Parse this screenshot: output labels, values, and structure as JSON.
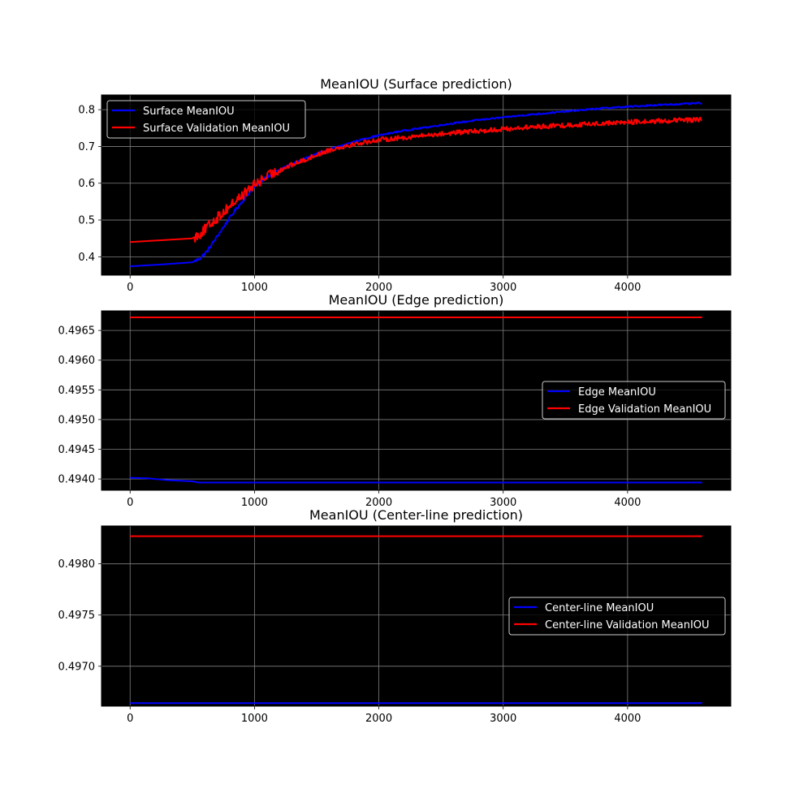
{
  "chart_data": [
    {
      "type": "line",
      "title": "MeanIOU (Surface prediction)",
      "xlabel": "",
      "ylabel": "",
      "xlim": [
        -230,
        4830
      ],
      "ylim": [
        0.35,
        0.84
      ],
      "xticks": [
        0,
        1000,
        2000,
        3000,
        4000
      ],
      "xtick_labels": [
        "0",
        "1000",
        "2000",
        "3000",
        "4000"
      ],
      "yticks": [
        0.4,
        0.5,
        0.6,
        0.7,
        0.8
      ],
      "ytick_labels": [
        "0.4",
        "0.5",
        "0.6",
        "0.7",
        "0.8"
      ],
      "grid": true,
      "background": "#000000",
      "legend": {
        "placement": "upper-left"
      },
      "series": [
        {
          "name": "Surface MeanIOU",
          "color": "#0000ff",
          "points": [
            [
              0,
              0.374
            ],
            [
              250,
              0.379
            ],
            [
              500,
              0.385
            ],
            [
              560,
              0.395
            ],
            [
              620,
              0.415
            ],
            [
              680,
              0.445
            ],
            [
              740,
              0.475
            ],
            [
              800,
              0.505
            ],
            [
              860,
              0.533
            ],
            [
              920,
              0.558
            ],
            [
              980,
              0.583
            ],
            [
              1040,
              0.603
            ],
            [
              1100,
              0.618
            ],
            [
              1200,
              0.637
            ],
            [
              1300,
              0.652
            ],
            [
              1400,
              0.667
            ],
            [
              1500,
              0.68
            ],
            [
              1600,
              0.692
            ],
            [
              1700,
              0.702
            ],
            [
              1800,
              0.713
            ],
            [
              1900,
              0.722
            ],
            [
              2000,
              0.73
            ],
            [
              2200,
              0.743
            ],
            [
              2400,
              0.753
            ],
            [
              2600,
              0.763
            ],
            [
              2800,
              0.772
            ],
            [
              3000,
              0.779
            ],
            [
              3200,
              0.786
            ],
            [
              3400,
              0.792
            ],
            [
              3600,
              0.798
            ],
            [
              3800,
              0.804
            ],
            [
              4000,
              0.808
            ],
            [
              4200,
              0.812
            ],
            [
              4400,
              0.815
            ],
            [
              4600,
              0.818
            ]
          ]
        },
        {
          "name": "Surface Validation MeanIOU",
          "color": "#ff0000",
          "points": [
            [
              0,
              0.44
            ],
            [
              250,
              0.445
            ],
            [
              500,
              0.45
            ],
            [
              560,
              0.462
            ],
            [
              620,
              0.48
            ],
            [
              680,
              0.5
            ],
            [
              740,
              0.518
            ],
            [
              800,
              0.538
            ],
            [
              860,
              0.555
            ],
            [
              920,
              0.572
            ],
            [
              980,
              0.59
            ],
            [
              1040,
              0.605
            ],
            [
              1100,
              0.618
            ],
            [
              1200,
              0.635
            ],
            [
              1300,
              0.65
            ],
            [
              1400,
              0.663
            ],
            [
              1500,
              0.677
            ],
            [
              1600,
              0.69
            ],
            [
              1700,
              0.699
            ],
            [
              1800,
              0.706
            ],
            [
              1900,
              0.712
            ],
            [
              2000,
              0.718
            ],
            [
              2200,
              0.724
            ],
            [
              2400,
              0.731
            ],
            [
              2600,
              0.737
            ],
            [
              2800,
              0.742
            ],
            [
              3000,
              0.747
            ],
            [
              3200,
              0.752
            ],
            [
              3400,
              0.756
            ],
            [
              3600,
              0.759
            ],
            [
              3800,
              0.763
            ],
            [
              4000,
              0.766
            ],
            [
              4200,
              0.768
            ],
            [
              4400,
              0.771
            ],
            [
              4600,
              0.773
            ]
          ]
        }
      ]
    },
    {
      "type": "line",
      "title": "MeanIOU (Edge prediction)",
      "xlabel": "",
      "ylabel": "",
      "xlim": [
        -230,
        4830
      ],
      "ylim": [
        0.49381,
        0.49683
      ],
      "xticks": [
        0,
        1000,
        2000,
        3000,
        4000
      ],
      "xtick_labels": [
        "0",
        "1000",
        "2000",
        "3000",
        "4000"
      ],
      "yticks": [
        0.494,
        0.4945,
        0.495,
        0.4955,
        0.496,
        0.4965
      ],
      "ytick_labels": [
        "0.4940",
        "0.4945",
        "0.4950",
        "0.4955",
        "0.4960",
        "0.4965"
      ],
      "grid": true,
      "background": "#000000",
      "legend": {
        "placement": "center-right"
      },
      "series": [
        {
          "name": "Edge MeanIOU",
          "color": "#0000ff",
          "points": [
            [
              0,
              0.49402
            ],
            [
              150,
              0.49401
            ],
            [
              300,
              0.49398
            ],
            [
              500,
              0.49396
            ],
            [
              550,
              0.49394
            ],
            [
              1000,
              0.49394
            ],
            [
              2000,
              0.49394
            ],
            [
              3000,
              0.49394
            ],
            [
              4000,
              0.49394
            ],
            [
              4600,
              0.49394
            ]
          ]
        },
        {
          "name": "Edge Validation MeanIOU",
          "color": "#ff0000",
          "points": [
            [
              0,
              0.49672
            ],
            [
              4600,
              0.49672
            ]
          ]
        }
      ]
    },
    {
      "type": "line",
      "title": "MeanIOU (Center-line prediction)",
      "xlabel": "",
      "ylabel": "",
      "xlim": [
        -230,
        4830
      ],
      "ylim": [
        0.49661,
        0.49837
      ],
      "xticks": [
        0,
        1000,
        2000,
        3000,
        4000
      ],
      "xtick_labels": [
        "0",
        "1000",
        "2000",
        "3000",
        "4000"
      ],
      "yticks": [
        0.497,
        0.4975,
        0.498
      ],
      "ytick_labels": [
        "0.4970",
        "0.4975",
        "0.4980"
      ],
      "grid": true,
      "background": "#000000",
      "legend": {
        "placement": "center-right"
      },
      "series": [
        {
          "name": "Center-line MeanIOU",
          "color": "#0000ff",
          "points": [
            [
              0,
              0.49664
            ],
            [
              4600,
              0.49664
            ]
          ]
        },
        {
          "name": "Center-line Validation MeanIOU",
          "color": "#ff0000",
          "points": [
            [
              0,
              0.49827
            ],
            [
              4600,
              0.49827
            ]
          ]
        }
      ]
    }
  ]
}
